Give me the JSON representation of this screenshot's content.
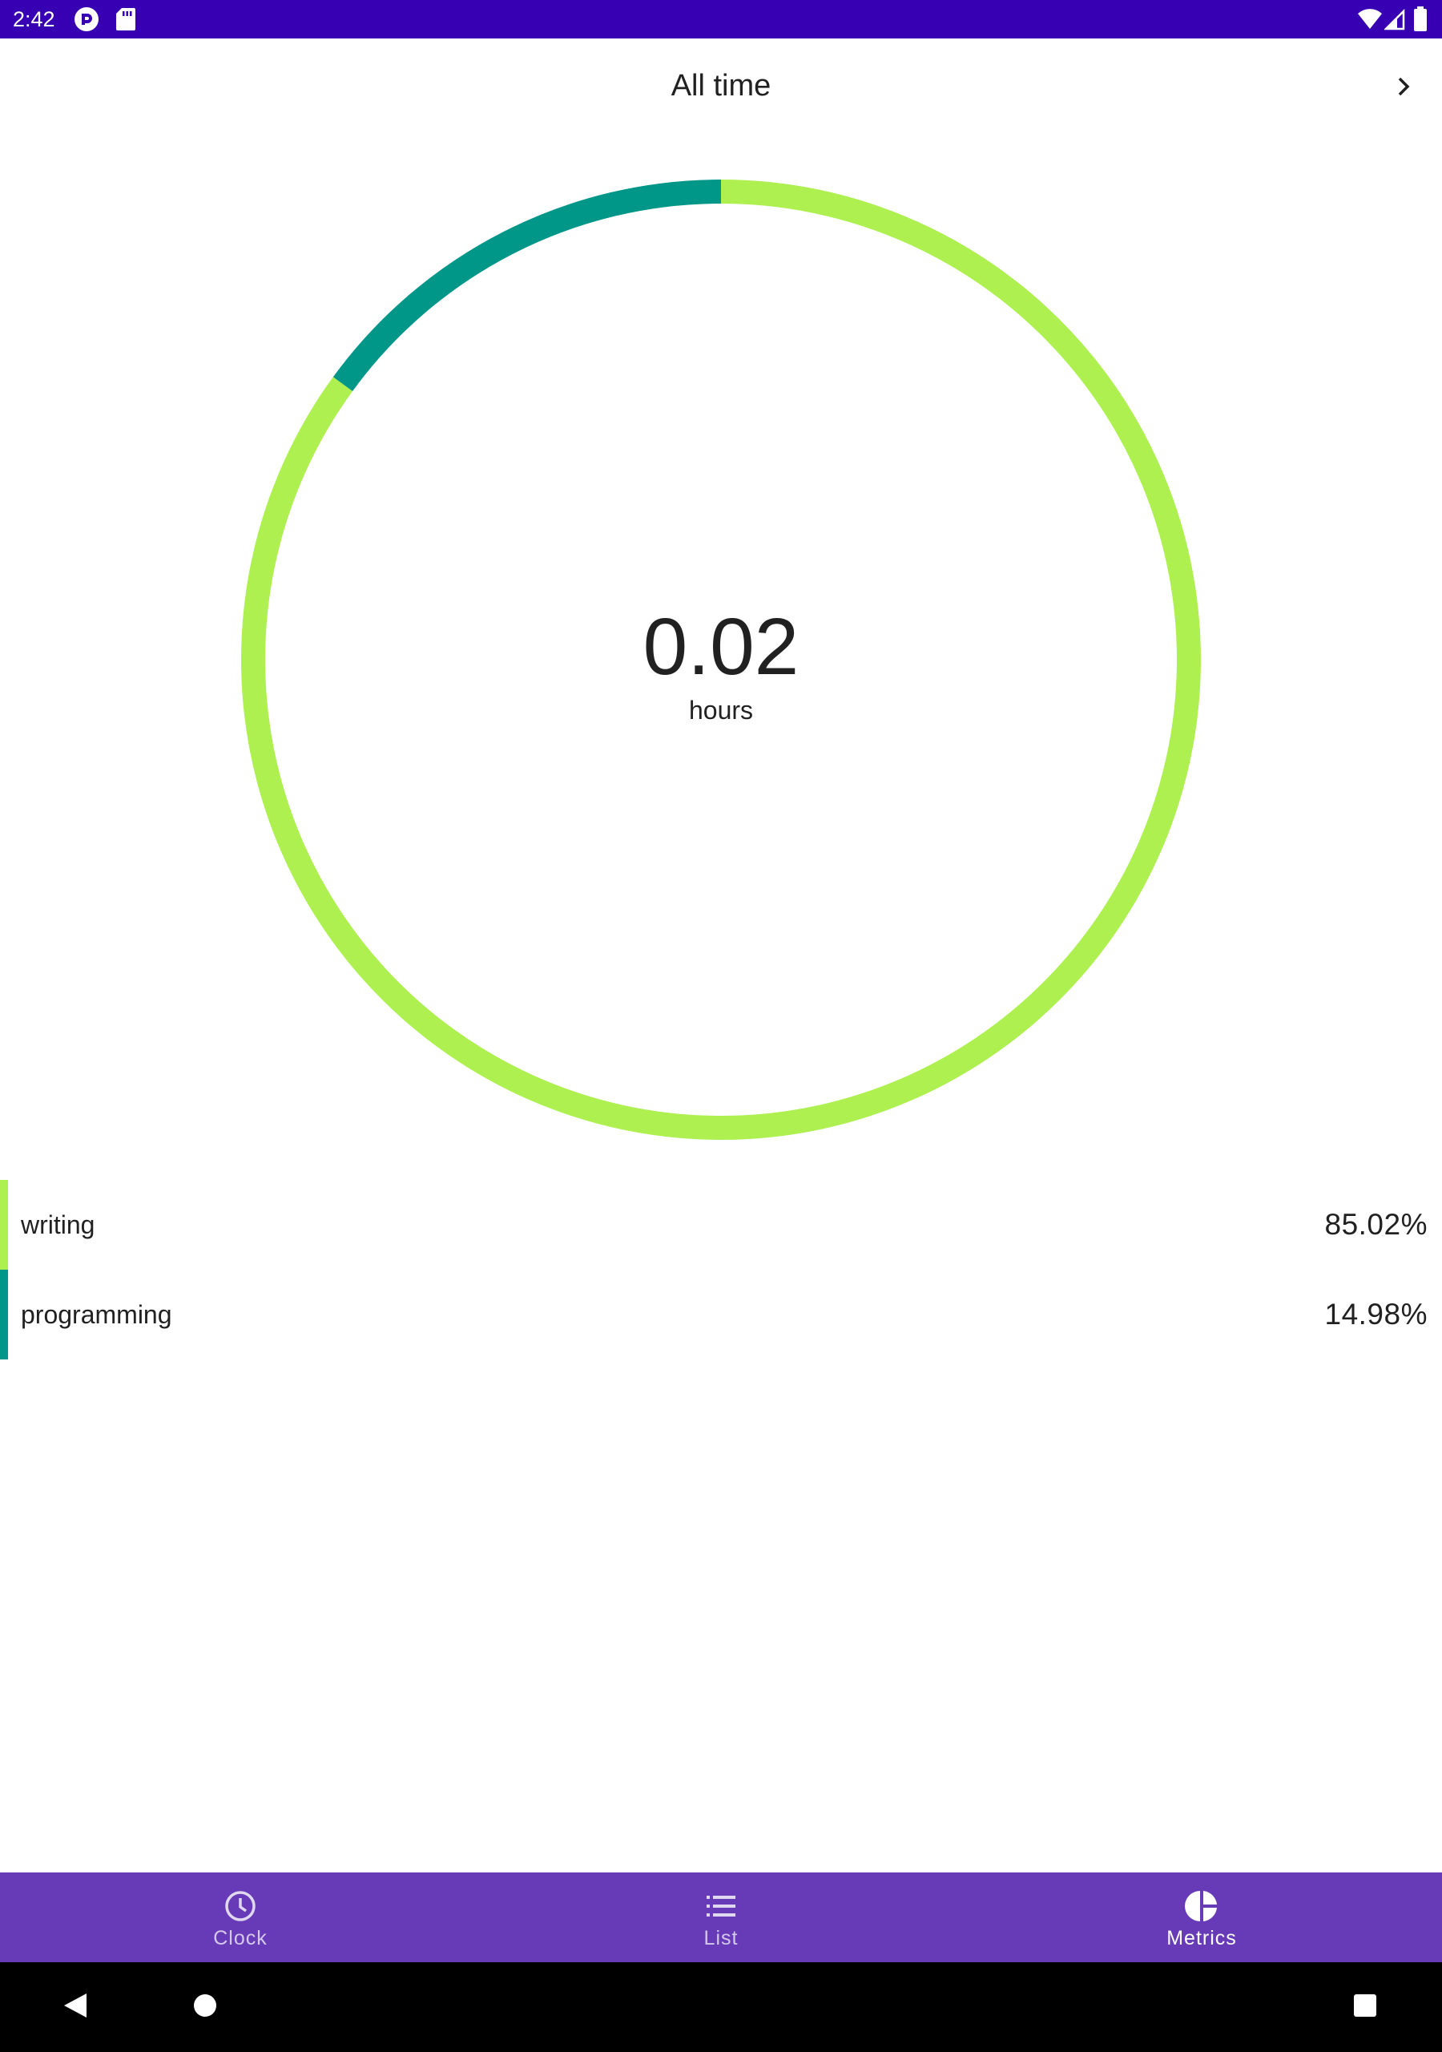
{
  "status_bar": {
    "time": "2:42",
    "icons_left": [
      "pocket-casts-icon",
      "sd-card-icon"
    ],
    "icons_right": [
      "wifi-icon",
      "cell-signal-icon",
      "battery-icon"
    ]
  },
  "header": {
    "title": "All time",
    "next_icon": "chevron-right-icon"
  },
  "summary": {
    "total": "0.02",
    "unit": "hours"
  },
  "chart_data": {
    "type": "pie",
    "style": "donut",
    "categories": [
      "writing",
      "programming"
    ],
    "values": [
      85.02,
      14.98
    ],
    "colors": [
      "#adf050",
      "#009688"
    ],
    "title": "",
    "center_label": "0.02 hours"
  },
  "legend": [
    {
      "label": "writing",
      "percent": "85.02%",
      "color": "#adf050"
    },
    {
      "label": "programming",
      "percent": "14.98%",
      "color": "#009688"
    }
  ],
  "bottom_nav": {
    "items": [
      {
        "label": "Clock",
        "icon": "clock-icon",
        "active": false
      },
      {
        "label": "List",
        "icon": "list-icon",
        "active": false
      },
      {
        "label": "Metrics",
        "icon": "pie-chart-icon",
        "active": true
      }
    ]
  },
  "system_nav": {
    "buttons": [
      "back-icon",
      "home-icon",
      "recents-icon"
    ]
  },
  "colors": {
    "status_bar": "#3700b3",
    "bottom_nav": "#673ab7",
    "writing": "#adf050",
    "programming": "#009688"
  }
}
